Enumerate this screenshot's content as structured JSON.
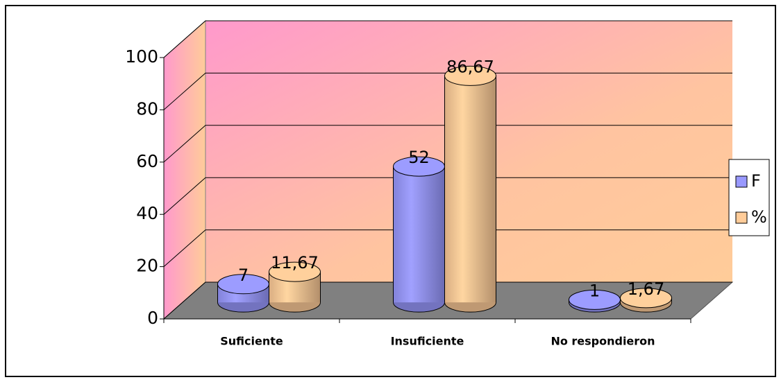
{
  "chart_data": {
    "type": "bar3d",
    "categories": [
      "Suficiente",
      "Insuficiente",
      "No respondieron"
    ],
    "series": [
      {
        "name": "F",
        "color": "#9999ff",
        "values": [
          7,
          52,
          1
        ]
      },
      {
        "name": "%",
        "color": "#ffcc99",
        "values": [
          11.67,
          86.67,
          1.67
        ],
        "value_labels": [
          "11,67",
          "86,67",
          "1,67"
        ]
      }
    ],
    "ylim": [
      0,
      100
    ],
    "yticks": [
      0,
      20,
      40,
      60,
      80,
      100
    ],
    "grid": true,
    "legend": "right"
  }
}
